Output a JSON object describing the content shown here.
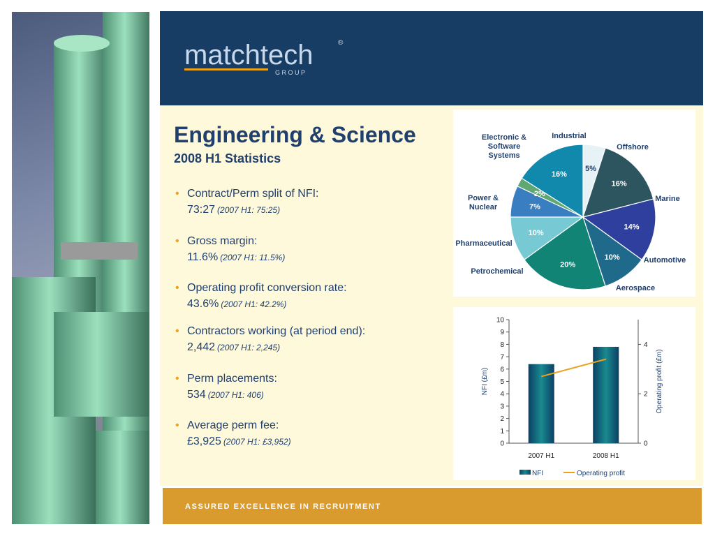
{
  "header": {
    "logo_text": "matchtech",
    "logo_sub": "G R O U P",
    "logo_reg": "®"
  },
  "title": "Engineering & Science",
  "subtitle": "2008 H1 Statistics",
  "stats": [
    {
      "label": "Contract/Perm split of NFI:",
      "value": "73:27",
      "prior": "(2007 H1: 75:25)"
    },
    {
      "label": "Gross margin:",
      "value": "11.6%",
      "prior": "(2007 H1: 11.5%)"
    },
    {
      "label": "Operating profit conversion rate:",
      "value": "43.6%",
      "prior": "(2007 H1: 42.2%)"
    },
    {
      "label": "Contractors working (at period end):",
      "value": "2,442",
      "prior": "(2007 H1: 2,245)"
    },
    {
      "label": "Perm placements:",
      "value": "534",
      "prior": "(2007 H1: 406)"
    },
    {
      "label": "Average perm fee:",
      "value": "£3,925",
      "prior": "(2007 H1: £3,952)"
    }
  ],
  "footer": {
    "tagline": "ASSURED EXCELLENCE IN RECRUITMENT"
  },
  "chart_data": [
    {
      "type": "pie",
      "title": "",
      "slices": [
        {
          "label": "Industrial",
          "value": 5,
          "value_label": "5%",
          "color": "#e6f2f6"
        },
        {
          "label": "Offshore",
          "value": 16,
          "value_label": "16%",
          "color": "#2c5560"
        },
        {
          "label": "Marine",
          "value": 14,
          "value_label": "14%",
          "color": "#2f3f9e"
        },
        {
          "label": "Automotive",
          "value": 10,
          "value_label": "10%",
          "color": "#1f6a8a"
        },
        {
          "label": "Aerospace",
          "value": 20,
          "value_label": "20%",
          "color": "#128476"
        },
        {
          "label": "Petrochemical",
          "value": 10,
          "value_label": "10%",
          "color": "#77c9d4"
        },
        {
          "label": "Pharmaceutical",
          "value": 7,
          "value_label": "7%",
          "color": "#3a7ec2"
        },
        {
          "label": "Power & Nuclear",
          "value": 2,
          "value_label": "2%",
          "color": "#5fa873"
        },
        {
          "label": "Electronic & Software Systems",
          "value": 16,
          "value_label": "16%",
          "color": "#1089ad"
        }
      ]
    },
    {
      "type": "bar",
      "categories": [
        "2007 H1",
        "2008 H1"
      ],
      "series": [
        {
          "name": "NFI",
          "type": "bar",
          "axis": "left",
          "values": [
            6.4,
            7.8
          ],
          "color": "#0b4f6c"
        },
        {
          "name": "Operating profit",
          "type": "line",
          "axis": "right",
          "values": [
            2.7,
            3.4
          ],
          "color": "#e8a21f"
        }
      ],
      "ylabel": "NFI (£m)",
      "y2label": "Operating profit (£m)",
      "ylim": [
        0,
        10
      ],
      "y2lim": [
        0,
        5
      ],
      "yticks": [
        0,
        1,
        2,
        3,
        4,
        5,
        6,
        7,
        8,
        9,
        10
      ],
      "y2ticks": [
        0,
        2,
        4
      ],
      "legend": "bottom"
    }
  ]
}
